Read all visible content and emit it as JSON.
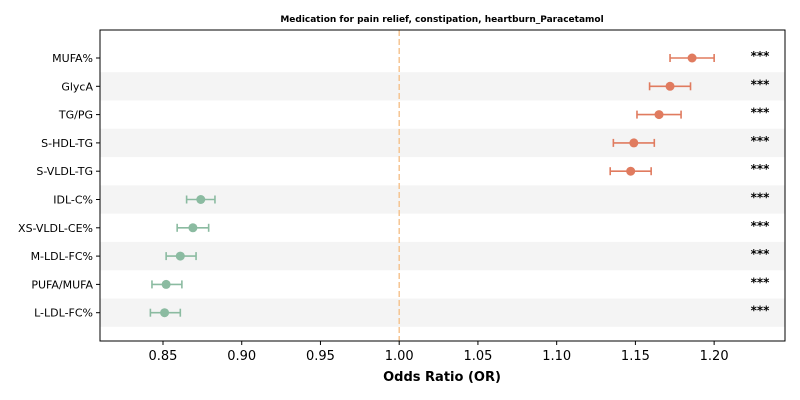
{
  "chart_data": {
    "type": "forest",
    "title": "Medication for pain relief, constipation, heartburn_Paracetamol",
    "xlabel": "Odds Ratio (OR)",
    "ylabel": "",
    "xlim": [
      0.81,
      1.245
    ],
    "xticks": [
      0.85,
      0.9,
      0.95,
      1.0,
      1.05,
      1.1,
      1.15,
      1.2
    ],
    "xtick_labels": [
      "0.85",
      "0.90",
      "0.95",
      "1.00",
      "1.05",
      "1.10",
      "1.15",
      "1.20"
    ],
    "reference_line": 1.0,
    "grid": false,
    "alternating_row_shading": true,
    "colors": {
      "positive": "#e07b5f",
      "negative": "#8bbba1",
      "reference": "#f5c08a",
      "shade": "#f4f4f4"
    },
    "rows": [
      {
        "label": "MUFA%",
        "or": 1.186,
        "lo": 1.172,
        "hi": 1.2,
        "sig": "***"
      },
      {
        "label": "GlycA",
        "or": 1.172,
        "lo": 1.159,
        "hi": 1.185,
        "sig": "***"
      },
      {
        "label": "TG/PG",
        "or": 1.165,
        "lo": 1.151,
        "hi": 1.179,
        "sig": "***"
      },
      {
        "label": "S-HDL-TG",
        "or": 1.149,
        "lo": 1.136,
        "hi": 1.162,
        "sig": "***"
      },
      {
        "label": "S-VLDL-TG",
        "or": 1.147,
        "lo": 1.134,
        "hi": 1.16,
        "sig": "***"
      },
      {
        "label": "IDL-C%",
        "or": 0.874,
        "lo": 0.865,
        "hi": 0.883,
        "sig": "***"
      },
      {
        "label": "XS-VLDL-CE%",
        "or": 0.869,
        "lo": 0.859,
        "hi": 0.879,
        "sig": "***"
      },
      {
        "label": "M-LDL-FC%",
        "or": 0.861,
        "lo": 0.852,
        "hi": 0.871,
        "sig": "***"
      },
      {
        "label": "PUFA/MUFA",
        "or": 0.852,
        "lo": 0.843,
        "hi": 0.862,
        "sig": "***"
      },
      {
        "label": "L-LDL-FC%",
        "or": 0.851,
        "lo": 0.842,
        "hi": 0.861,
        "sig": "***"
      }
    ]
  }
}
